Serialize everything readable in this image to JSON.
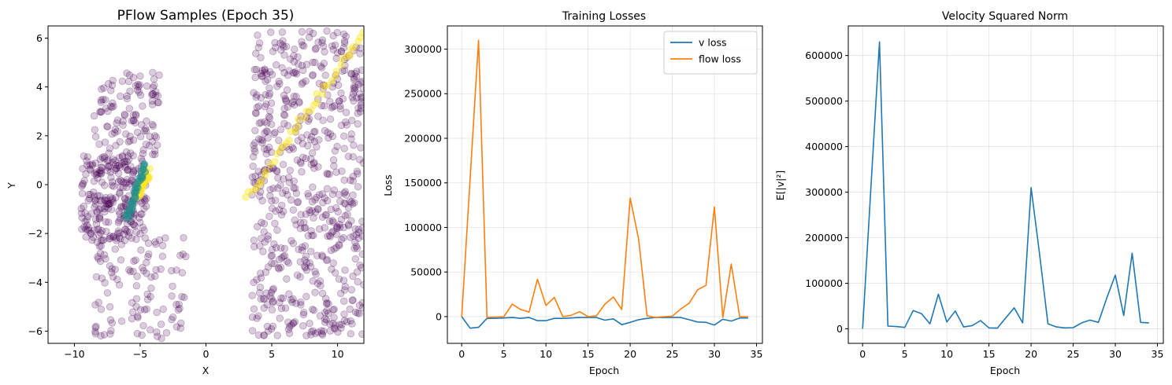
{
  "chart_data": [
    {
      "type": "scatter",
      "title": "PFlow Samples (Epoch 35)",
      "xlabel": "X",
      "ylabel": "Y",
      "xlim": [
        -12,
        12
      ],
      "ylim": [
        -6.5,
        6.5
      ],
      "xticks": [
        -10,
        -5,
        0,
        5,
        10
      ],
      "yticks": [
        -6,
        -4,
        -2,
        0,
        2,
        4,
        6
      ],
      "grid": false,
      "colormap": "viridis",
      "point_color": "#440154",
      "point_alpha": 0.2,
      "clusters": [
        {
          "region": "left blob",
          "x_range": [
            -9.5,
            -4.5
          ],
          "y_range": [
            -2.3,
            1.2
          ],
          "count": 260
        },
        {
          "region": "left arm",
          "x_range": [
            -8.5,
            -3.5
          ],
          "y_range": [
            1.2,
            4.6
          ],
          "count": 110
        },
        {
          "region": "lower left diagonal",
          "x_range": [
            -8.5,
            -1.5
          ],
          "y_range": [
            -6.3,
            -2.0
          ],
          "count": 110
        },
        {
          "region": "right cloud",
          "x_range": [
            3.5,
            12
          ],
          "y_range": [
            -6.2,
            6.3
          ],
          "count": 650
        }
      ],
      "bright_curves": [
        {
          "color": "#fde725",
          "x_range": [
            -5.2,
            -4.4
          ],
          "y_range": [
            -0.4,
            0.5
          ]
        },
        {
          "color": "#21918c",
          "x_range": [
            -6.0,
            -4.6
          ],
          "y_range": [
            -1.4,
            0.8
          ]
        },
        {
          "color": "#fde725",
          "x_range": [
            3.0,
            12
          ],
          "y_range": [
            -0.6,
            6.3
          ]
        }
      ]
    },
    {
      "type": "line",
      "title": "Training Losses",
      "xlabel": "Epoch",
      "ylabel": "Loss",
      "xlim": [
        -1.7,
        35.7
      ],
      "ylim": [
        -30000,
        326000
      ],
      "xticks": [
        0,
        5,
        10,
        15,
        20,
        25,
        30,
        35
      ],
      "yticks": [
        0,
        50000,
        100000,
        150000,
        200000,
        250000,
        300000
      ],
      "grid": true,
      "legend": "top-right",
      "x": [
        0,
        1,
        2,
        3,
        4,
        5,
        6,
        7,
        8,
        9,
        10,
        11,
        12,
        13,
        14,
        15,
        16,
        17,
        18,
        19,
        20,
        21,
        22,
        23,
        24,
        25,
        26,
        27,
        28,
        29,
        30,
        31,
        32,
        33,
        34
      ],
      "series": [
        {
          "name": "v loss",
          "color": "#1f77b4",
          "values": [
            0,
            -13000,
            -12000,
            -2000,
            -2000,
            -1500,
            -1000,
            -2000,
            -1000,
            -4500,
            -4500,
            -2000,
            -2000,
            -1500,
            -1000,
            -1000,
            -1000,
            -4000,
            -2500,
            -9000,
            -6500,
            -3500,
            -2000,
            -1000,
            -1000,
            -1000,
            -1000,
            -3500,
            -6000,
            -6500,
            -9500,
            -3000,
            -5000,
            -1500,
            -1500
          ]
        },
        {
          "name": "flow loss",
          "color": "#ff7f0e",
          "values": [
            0,
            155000,
            310000,
            -1000,
            -500,
            0,
            14000,
            8000,
            5000,
            42000,
            12500,
            21500,
            0,
            1500,
            5500,
            0,
            1000,
            14000,
            22000,
            8000,
            133000,
            87000,
            1000,
            -1000,
            0,
            500,
            8500,
            15000,
            30000,
            35000,
            123000,
            -1000,
            59000,
            0,
            0
          ]
        }
      ]
    },
    {
      "type": "line",
      "title": "Velocity Squared Norm",
      "xlabel": "Epoch",
      "ylabel": "E[|v|²]",
      "xlim": [
        -1.7,
        35.7
      ],
      "ylim": [
        -32000,
        665000
      ],
      "xticks": [
        0,
        5,
        10,
        15,
        20,
        25,
        30,
        35
      ],
      "yticks": [
        0,
        100000,
        200000,
        300000,
        400000,
        500000,
        600000
      ],
      "grid": true,
      "x": [
        0,
        1,
        2,
        3,
        4,
        5,
        6,
        7,
        8,
        9,
        10,
        11,
        12,
        13,
        14,
        15,
        16,
        17,
        18,
        19,
        20,
        21,
        22,
        23,
        24,
        25,
        26,
        27,
        28,
        29,
        30,
        31,
        32,
        33,
        34
      ],
      "series": [
        {
          "color": "#1f77b4",
          "values": [
            0,
            315000,
            630000,
            6000,
            5000,
            3000,
            40000,
            33000,
            11000,
            76000,
            15000,
            39000,
            4000,
            7000,
            18000,
            2000,
            1500,
            24000,
            46000,
            13000,
            310000,
            165000,
            11000,
            4000,
            2000,
            2500,
            13000,
            19000,
            14000,
            68000,
            118000,
            29000,
            166000,
            14000,
            13000
          ]
        }
      ]
    }
  ]
}
